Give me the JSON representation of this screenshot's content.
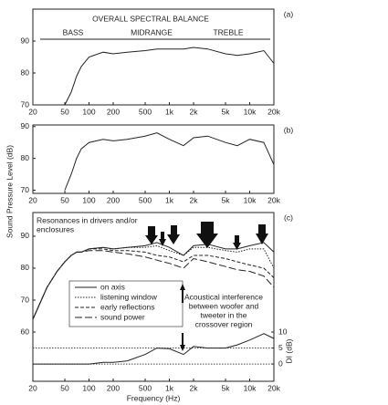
{
  "chart_data": [
    {
      "type": "line",
      "panel_label": "(a)",
      "title": "OVERALL SPECTRAL BALANCE",
      "bands": [
        "BASS",
        "MIDRANGE",
        "TREBLE"
      ],
      "log_x": true,
      "xlim": [
        20,
        20000
      ],
      "ylim": [
        70,
        100
      ],
      "yticks": [
        70,
        80,
        90
      ],
      "xticks": [
        20,
        50,
        100,
        200,
        500,
        {
          "value": 1000,
          "label": "1k"
        },
        {
          "value": 2000,
          "label": "2k"
        },
        {
          "value": 5000,
          "label": "5k"
        },
        {
          "value": 10000,
          "label": "10k"
        },
        {
          "value": 20000,
          "label": "20k"
        }
      ],
      "x": [
        50,
        60,
        70,
        80,
        100,
        150,
        200,
        300,
        500,
        700,
        1000,
        1500,
        2000,
        3000,
        5000,
        7000,
        10000,
        15000,
        20000
      ],
      "series": [
        {
          "color": "#222",
          "values": [
            70,
            74,
            79,
            82,
            85,
            86.5,
            86,
            86.5,
            87,
            87.5,
            87.5,
            87.5,
            88,
            87.5,
            86,
            85.5,
            86,
            87,
            83
          ]
        }
      ]
    },
    {
      "type": "line",
      "panel_label": "(b)",
      "ylabel": "Sound Pressure Level (dB)",
      "log_x": true,
      "xlim": [
        20,
        20000
      ],
      "ylim": [
        69,
        90.5
      ],
      "yticks": [
        70,
        80,
        90
      ],
      "xticks": [
        20,
        50,
        100,
        200,
        500,
        {
          "value": 1000,
          "label": "1k"
        },
        {
          "value": 2000,
          "label": "2k"
        },
        {
          "value": 5000,
          "label": "5k"
        },
        {
          "value": 10000,
          "label": "10k"
        },
        {
          "value": 20000,
          "label": "20k"
        }
      ],
      "x": [
        50,
        60,
        70,
        80,
        100,
        150,
        200,
        300,
        500,
        700,
        1000,
        1500,
        2000,
        3000,
        5000,
        7000,
        10000,
        15000,
        20000
      ],
      "series": [
        {
          "color": "#222",
          "values": [
            70,
            75,
            80,
            83,
            85,
            86,
            85.5,
            86,
            87,
            88,
            86,
            84,
            86.5,
            87,
            85,
            84,
            86,
            85,
            78
          ]
        }
      ]
    },
    {
      "type": "line",
      "panel_label": "(c)",
      "xlabel": "Frequency (Hz)",
      "y2label": "DI (dB)",
      "annotations": [
        [
          "Resonances in drivers and/or",
          "enclosures"
        ],
        [
          "Acoustical interference",
          "between woofer and",
          "tweeter in the",
          "crossover region"
        ]
      ],
      "log_x": true,
      "xlim": [
        20,
        20000
      ],
      "ylim": [
        44.6,
        97.4
      ],
      "yticks": [
        60,
        70,
        80,
        90
      ],
      "y2lim": [
        -5.4,
        47.4
      ],
      "y2ticks": [
        0,
        5,
        10
      ],
      "y2_reference_lines": [
        0,
        5
      ],
      "xticks": [
        20,
        50,
        100,
        200,
        500,
        {
          "value": 1000,
          "label": "1k"
        },
        {
          "value": 2000,
          "label": "2k"
        },
        {
          "value": 5000,
          "label": "5k"
        },
        {
          "value": 10000,
          "label": "10k"
        },
        {
          "value": 20000,
          "label": "20k"
        }
      ],
      "x": [
        20,
        30,
        40,
        50,
        60,
        70,
        80,
        100,
        150,
        200,
        300,
        500,
        700,
        1000,
        1500,
        2000,
        3000,
        5000,
        7000,
        10000,
        15000,
        20000
      ],
      "series": [
        {
          "name": "on axis",
          "color": "#222",
          "dash": "",
          "values": [
            64,
            74,
            79,
            82,
            84,
            85,
            85,
            86,
            86.5,
            86,
            86.5,
            87,
            88,
            86.5,
            84,
            87,
            87.5,
            86,
            86,
            87,
            88,
            85
          ]
        },
        {
          "name": "listening window",
          "color": "#222",
          "dash": "1.5,1.5",
          "values": [
            64,
            74,
            79,
            82,
            84,
            85,
            85,
            86,
            86.5,
            86,
            86.5,
            86.5,
            87,
            85.5,
            84,
            86.5,
            86.5,
            85.5,
            85,
            86,
            86,
            80
          ]
        },
        {
          "name": "early reflections",
          "color": "#222",
          "dash": "4,2",
          "values": [
            64,
            74,
            79,
            82,
            84,
            85,
            85,
            86,
            86,
            85.5,
            85.5,
            85,
            84,
            83.5,
            82,
            84,
            84,
            83,
            82,
            81,
            80,
            77
          ]
        },
        {
          "name": "sound power",
          "color": "#222",
          "dash": "8,3",
          "values": [
            64,
            74,
            79,
            82,
            84,
            85,
            85,
            85.5,
            85.5,
            85,
            84.5,
            83.5,
            82.5,
            81.5,
            80,
            83,
            82,
            80.5,
            79.5,
            79,
            77.5,
            74
          ]
        },
        {
          "color": "#222",
          "dash": "",
          "axis": "y2",
          "values": [
            0,
            0,
            0,
            0,
            0,
            0,
            0,
            0,
            0.5,
            0.5,
            1,
            3,
            5,
            4.8,
            3,
            5.5,
            5,
            5,
            6,
            7.5,
            9.5,
            8
          ]
        }
      ]
    }
  ]
}
